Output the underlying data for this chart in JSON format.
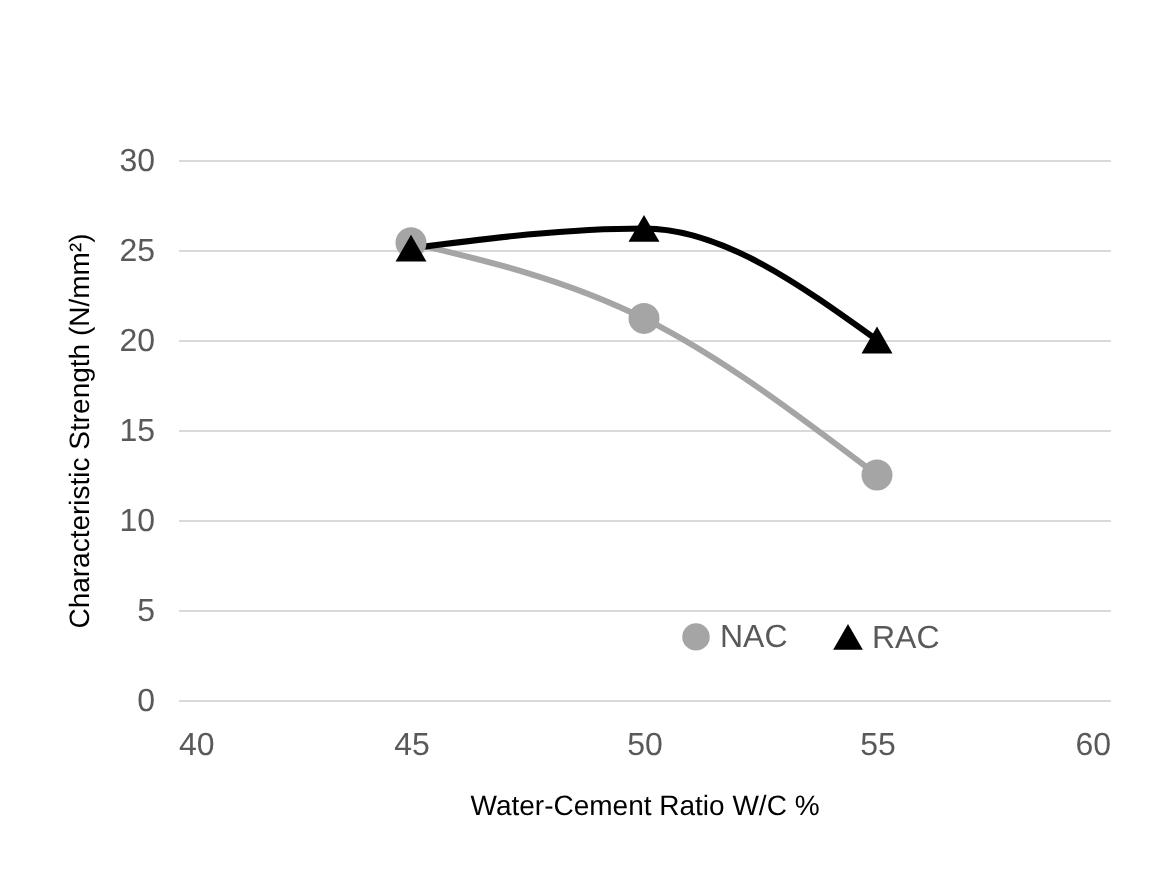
{
  "chart_data": {
    "type": "line",
    "xlabel": "Water-Cement Ratio W/C %",
    "ylabel": "Characteristic  Strength (N/mm²)",
    "x": [
      45,
      50,
      55
    ],
    "series": [
      {
        "name": "NAC",
        "color": "#a5a5a5",
        "marker": "circle",
        "values": [
          25.4,
          21.2,
          12.5
        ]
      },
      {
        "name": "RAC",
        "color": "#000000",
        "marker": "triangle",
        "values": [
          25.1,
          26.2,
          20.0
        ]
      }
    ],
    "xlim": [
      40,
      60
    ],
    "xticks": [
      40,
      45,
      50,
      55,
      60
    ],
    "ylim": [
      0,
      30
    ],
    "yticks": [
      0,
      5,
      10,
      15,
      20,
      25,
      30
    ],
    "grid": "y",
    "legend": "bottom right"
  }
}
